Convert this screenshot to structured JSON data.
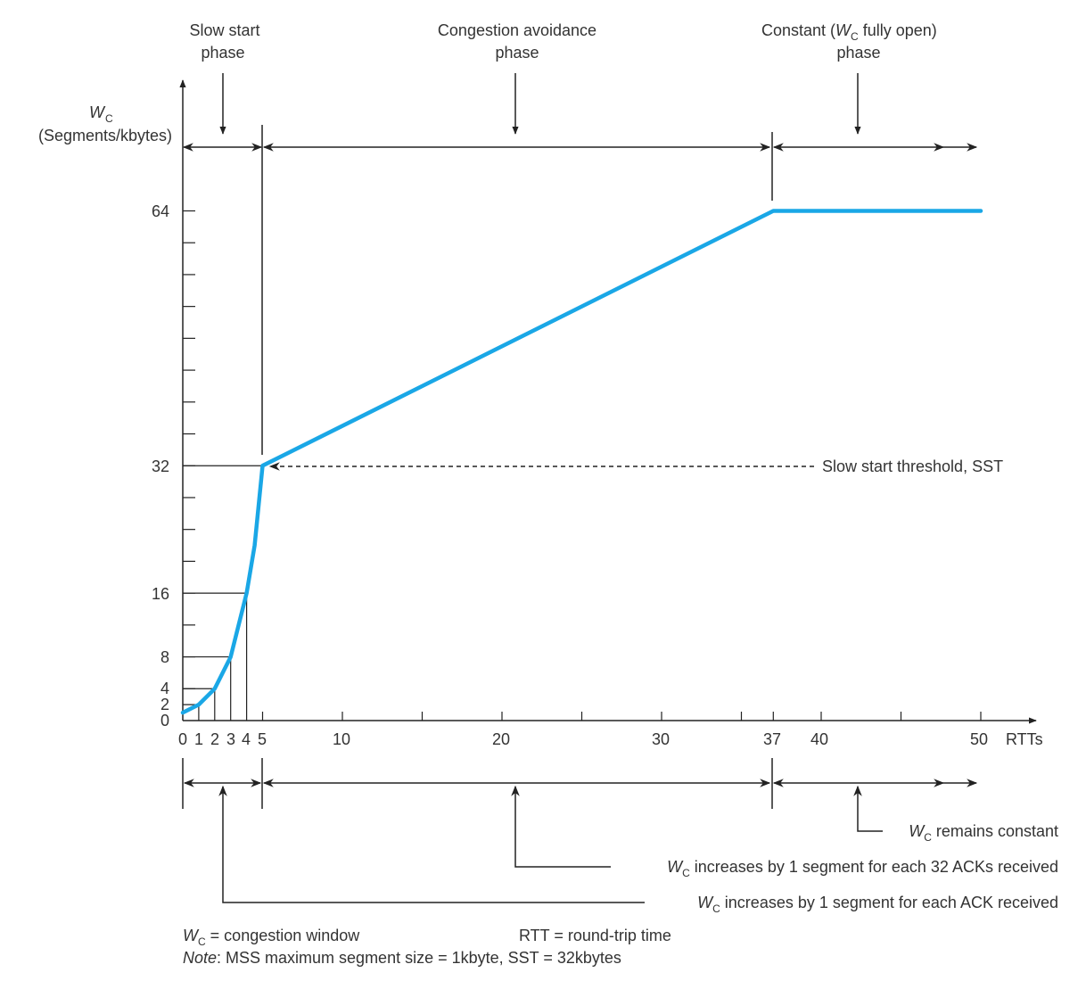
{
  "chart_data": {
    "type": "line",
    "y_axis_label": {
      "symbol": "W",
      "sub": "C",
      "line2": "(Segments/kbytes)"
    },
    "x_unit": "RTTs",
    "xlim": [
      0,
      50
    ],
    "ylim": [
      0,
      64
    ],
    "x_tick_labels": [
      "0",
      "1",
      "2",
      "3",
      "4",
      "5",
      "10",
      "20",
      "30",
      "37",
      "40",
      "50"
    ],
    "y_tick_labels": [
      "0",
      "2",
      "4",
      "8",
      "16",
      "32",
      "64"
    ],
    "series": [
      {
        "color": "#1aa7e6",
        "x": [
          0,
          1,
          2,
          3,
          4,
          4.5,
          5,
          37,
          50
        ],
        "y": [
          1,
          2,
          4,
          8,
          16,
          22,
          32,
          64,
          64
        ]
      }
    ],
    "phases_top": [
      {
        "line1": "Slow start",
        "line2": "phase"
      },
      {
        "line1": "Congestion avoidance",
        "line2": "phase"
      },
      {
        "pre": "Constant (",
        "sym": "W",
        "sub": "C",
        "post": " fully open)",
        "line2": "phase"
      }
    ],
    "sst_annotation": "Slow start threshold, SST",
    "bottom_annotations": [
      {
        "sym": "W",
        "sub": "C",
        "text": " remains constant"
      },
      {
        "sym": "W",
        "sub": "C",
        "text": " increases by 1 segment for each 32 ACKs received"
      },
      {
        "sym": "W",
        "sub": "C",
        "text": " increases by 1 segment for each ACK received"
      }
    ],
    "footnotes": {
      "wc_def": {
        "sym": "W",
        "sub": "C",
        "text": " = congestion window"
      },
      "rtt_def": "RTT = round-trip time",
      "note_label": "Note",
      "note_text": ": MSS maximum segment size = 1kbyte, SST = 32kbytes"
    }
  }
}
